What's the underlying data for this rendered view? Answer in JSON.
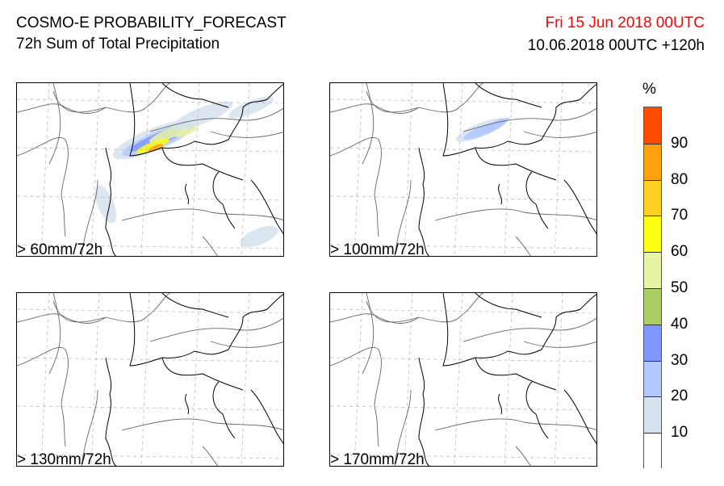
{
  "header": {
    "title": "COSMO-E PROBABILITY_FORECAST",
    "subtitle": "72h Sum of Total Precipitation",
    "valid_time": "Fri 15 Jun 2018 00UTC",
    "run_time": "10.06.2018 00UTC +120h"
  },
  "panels": [
    {
      "label": "> 60mm/72h",
      "intensity": 1.0
    },
    {
      "label": "> 100mm/72h",
      "intensity": 0.35
    },
    {
      "label": "> 130mm/72h",
      "intensity": 0
    },
    {
      "label": "> 170mm/72h",
      "intensity": 0
    }
  ],
  "colorbar": {
    "unit": "%",
    "ticks": [
      "10",
      "20",
      "30",
      "40",
      "50",
      "60",
      "70",
      "80",
      "90"
    ],
    "colors": [
      "#ffffff",
      "#d6e2ee",
      "#b3c9ff",
      "#7f97ff",
      "#abcf63",
      "#e8f4a4",
      "#ffff14",
      "#ffcf21",
      "#ffa00f",
      "#ff4b00"
    ]
  },
  "accent": {
    "valid_time_color": "#ff0000"
  }
}
